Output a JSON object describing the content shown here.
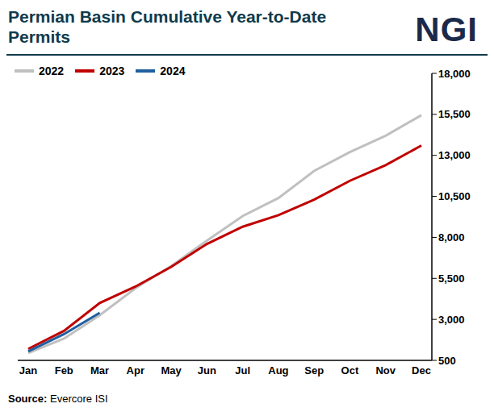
{
  "chart_data": {
    "type": "line",
    "title": "Permian Basin Cumulative Year-to-Date Permits",
    "logo": "NGI",
    "source_label": "Source:",
    "source": "Evercore ISI",
    "categories": [
      "Jan",
      "Feb",
      "Mar",
      "Apr",
      "May",
      "Jun",
      "Jul",
      "Aug",
      "Sep",
      "Oct",
      "Nov",
      "Dec"
    ],
    "series": [
      {
        "name": "2022",
        "color": "#c0c0c0",
        "values": [
          950,
          1830,
          3250,
          4900,
          6250,
          7800,
          9300,
          10400,
          12050,
          13200,
          14200,
          15450
        ]
      },
      {
        "name": "2023",
        "color": "#c00000",
        "values": [
          1200,
          2300,
          4000,
          5000,
          6200,
          7600,
          8650,
          9350,
          10300,
          11450,
          12400,
          13600
        ]
      },
      {
        "name": "2024",
        "color": "#1f5fa0",
        "values": [
          1050,
          2100,
          3400,
          null,
          null,
          null,
          null,
          null,
          null,
          null,
          null,
          null
        ]
      }
    ],
    "ylim": [
      500,
      18000
    ],
    "yticks": [
      500,
      {
        "value": 3000,
        "label": "3,000"
      },
      {
        "value": 5500,
        "label": "5,500"
      },
      {
        "value": 8000,
        "label": "8,000"
      },
      {
        "value": 10500,
        "label": "10,500"
      },
      {
        "value": 13000,
        "label": "13,000"
      },
      {
        "value": 15500,
        "label": "15,500"
      },
      {
        "value": 18000,
        "label": "18,000"
      }
    ],
    "grid": false,
    "legend": "top-left"
  }
}
